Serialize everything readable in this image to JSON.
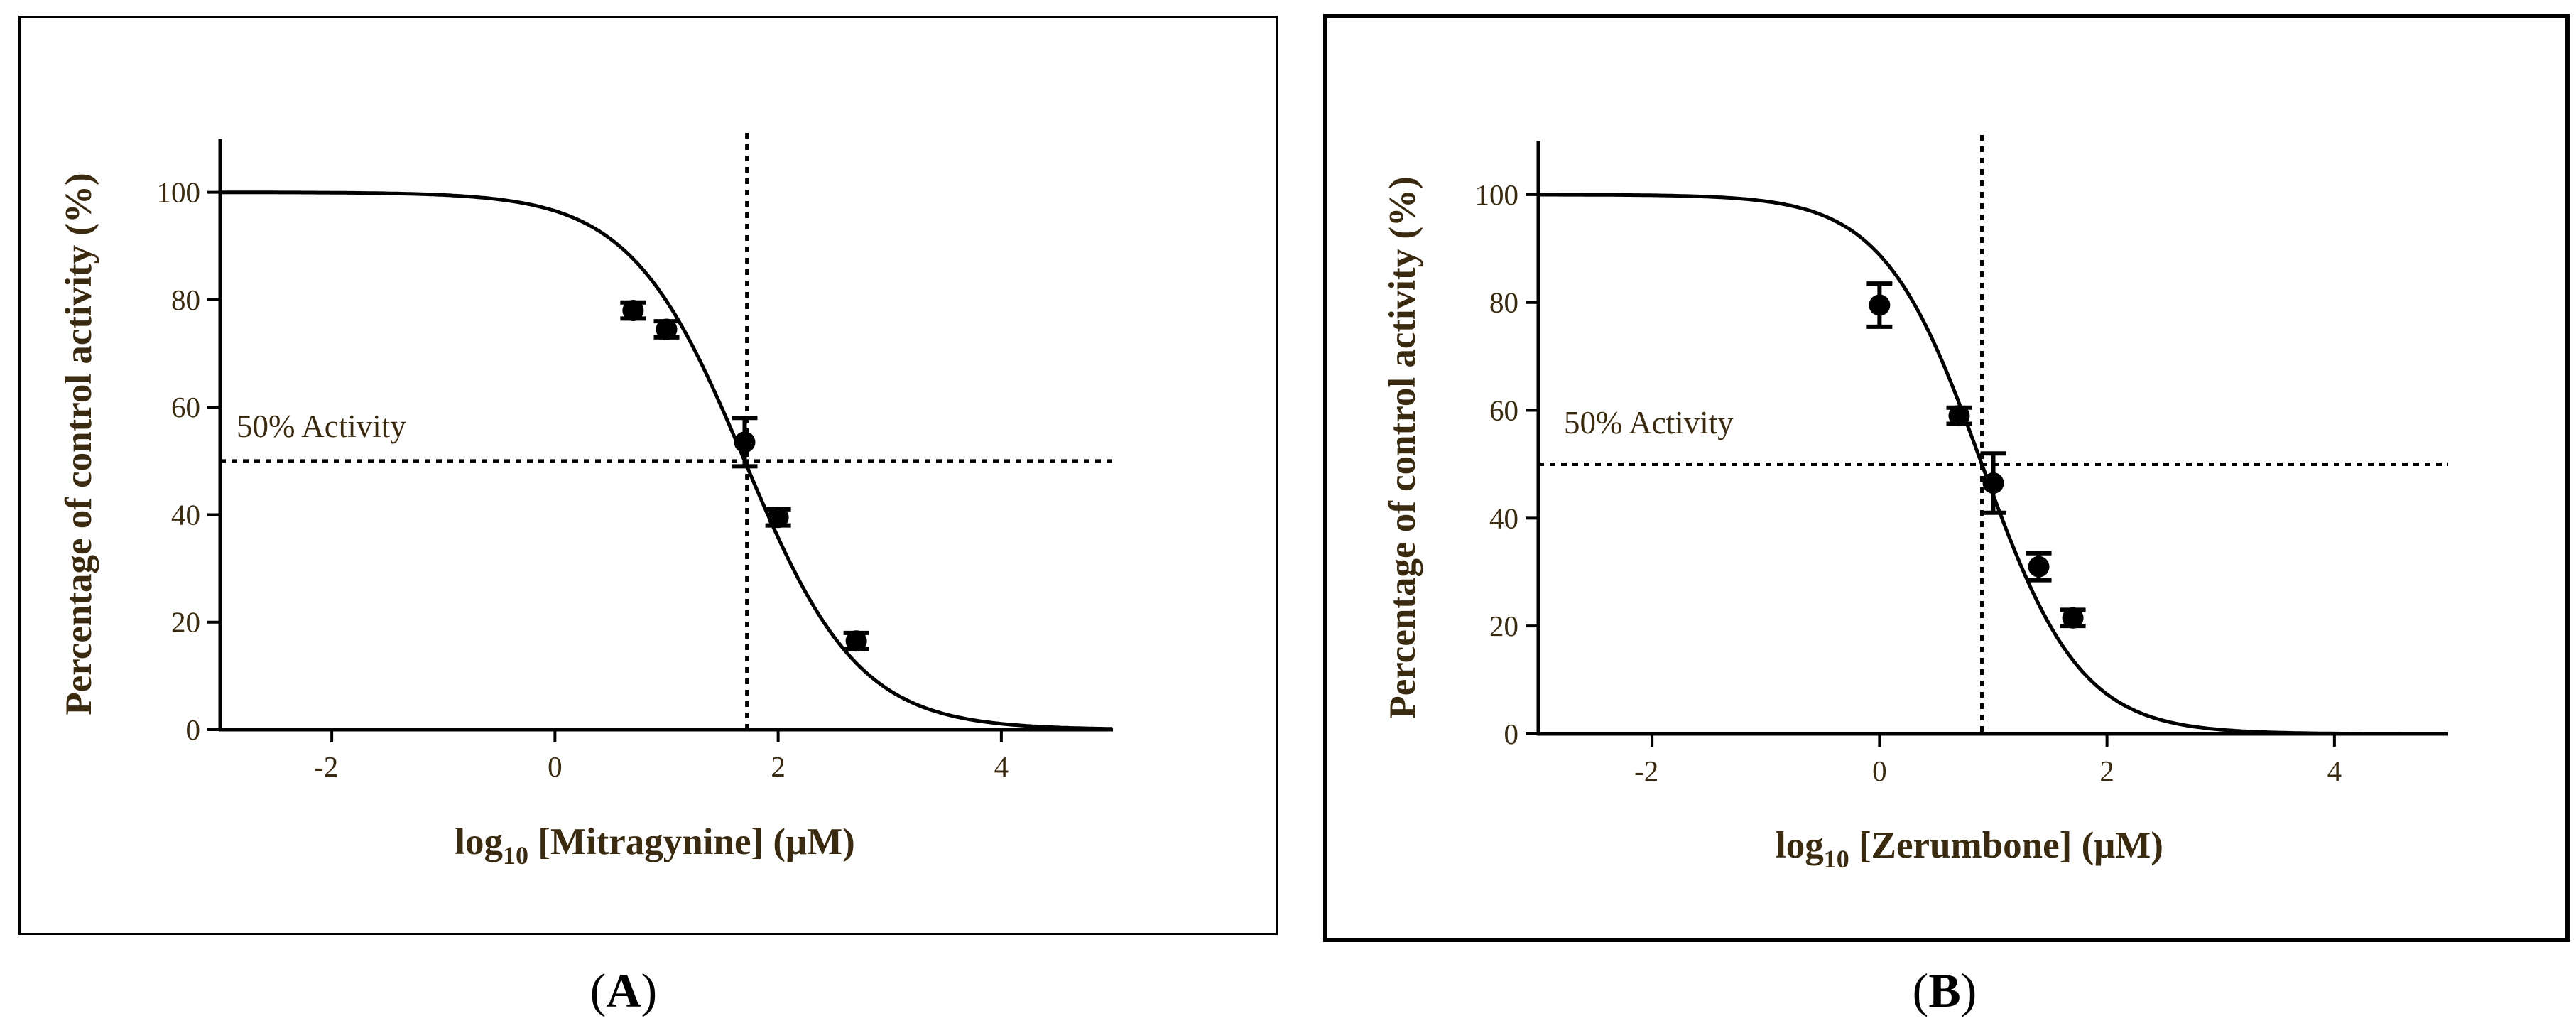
{
  "colors": {
    "ink": "#000000",
    "axis_text": "#3a2a10",
    "background": "#ffffff"
  },
  "chart_data": [
    {
      "type": "scatter",
      "panel": "A",
      "panel_label": "A",
      "title": "",
      "xlabel": "log₁₀ [Mitragynine] (μM)",
      "xlabel_prefix": "log",
      "xlabel_subscript": "10",
      "xlabel_suffix": " [Mitragynine] (μM)",
      "ylabel": "Percentage of control activity (%)",
      "xlim": [
        -3,
        5
      ],
      "ylim": [
        0,
        110
      ],
      "xticks": [
        -2,
        0,
        2,
        4
      ],
      "xtick_labels": [
        "-2",
        "0",
        "2",
        "4"
      ],
      "yticks": [
        0,
        20,
        40,
        60,
        80,
        100
      ],
      "ytick_labels": [
        "0",
        "20",
        "40",
        "60",
        "80",
        "100"
      ],
      "curve": {
        "name": "dose-response fit",
        "top": 100,
        "bottom": 0,
        "log_ic50": 1.7,
        "hill_slope": -0.85
      },
      "points": [
        {
          "x": 0.7,
          "y": 78,
          "err": 1.5
        },
        {
          "x": 1.0,
          "y": 74.5,
          "err": 1.5
        },
        {
          "x": 1.7,
          "y": 53.5,
          "err": 4.5
        },
        {
          "x": 2.0,
          "y": 39.5,
          "err": 1.5
        },
        {
          "x": 2.7,
          "y": 16.5,
          "err": 1.5
        }
      ],
      "reference_y": 50,
      "reference_x": 1.72,
      "annotation": "50% Activity"
    },
    {
      "type": "scatter",
      "panel": "B",
      "panel_label": "B",
      "title": "",
      "xlabel": "log₁₀ [Zerumbone] (μM)",
      "xlabel_prefix": "log",
      "xlabel_subscript": "10",
      "xlabel_suffix": " [Zerumbone] (μM)",
      "ylabel": "Percentage of control activity (%)",
      "xlim": [
        -3,
        5
      ],
      "ylim": [
        0,
        110
      ],
      "xticks": [
        -2,
        0,
        2,
        4
      ],
      "xtick_labels": [
        "-2",
        "0",
        "2",
        "4"
      ],
      "yticks": [
        0,
        20,
        40,
        60,
        80,
        100
      ],
      "ytick_labels": [
        "0",
        "20",
        "40",
        "60",
        "80",
        "100"
      ],
      "curve": {
        "name": "dose-response fit",
        "top": 100,
        "bottom": 0,
        "log_ic50": 0.9,
        "hill_slope": -1.0
      },
      "points": [
        {
          "x": 0.0,
          "y": 79.5,
          "err": 4.0
        },
        {
          "x": 0.7,
          "y": 59,
          "err": 1.5
        },
        {
          "x": 1.0,
          "y": 46.5,
          "err": 5.5
        },
        {
          "x": 1.4,
          "y": 31,
          "err": 2.5
        },
        {
          "x": 1.7,
          "y": 21.5,
          "err": 1.5
        }
      ],
      "reference_y": 50,
      "reference_x": 0.9,
      "annotation": "50%  Activity"
    }
  ]
}
